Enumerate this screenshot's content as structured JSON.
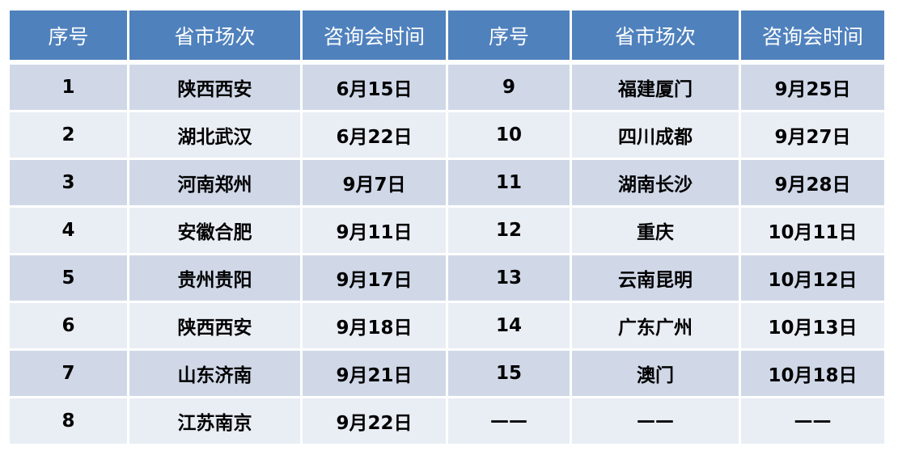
{
  "headers": [
    "序号",
    "省市场次",
    "咨询会时间",
    "序号",
    "省市场次",
    "咨询会时间"
  ],
  "rows": [
    {
      "left": {
        "no": "1",
        "city": "陕西西安",
        "date": "6月15日"
      },
      "right": {
        "no": "9",
        "city": "福建厦门",
        "date": "9月25日"
      }
    },
    {
      "left": {
        "no": "2",
        "city": "湖北武汉",
        "date": "6月22日"
      },
      "right": {
        "no": "10",
        "city": "四川成都",
        "date": "9月27日"
      }
    },
    {
      "left": {
        "no": "3",
        "city": "河南郑州",
        "date": "9月7日"
      },
      "right": {
        "no": "11",
        "city": "湖南长沙",
        "date": "9月28日"
      }
    },
    {
      "left": {
        "no": "4",
        "city": "安徽合肥",
        "date": "9月11日"
      },
      "right": {
        "no": "12",
        "city": "重庆",
        "date": "10月11日"
      }
    },
    {
      "left": {
        "no": "5",
        "city": "贵州贵阳",
        "date": "9月17日"
      },
      "right": {
        "no": "13",
        "city": "云南昆明",
        "date": "10月12日"
      }
    },
    {
      "left": {
        "no": "6",
        "city": "陕西西安",
        "date": "9月18日"
      },
      "right": {
        "no": "14",
        "city": "广东广州",
        "date": "10月13日"
      }
    },
    {
      "left": {
        "no": "7",
        "city": "山东济南",
        "date": "9月21日"
      },
      "right": {
        "no": "15",
        "city": "澳门",
        "date": "10月18日"
      }
    },
    {
      "left": {
        "no": "8",
        "city": "江苏南京",
        "date": "9月22日"
      },
      "right": {
        "no": "——",
        "city": "——",
        "date": "——"
      }
    }
  ],
  "colors": {
    "header": "#4f81bd",
    "row_odd": "#d0d8e8",
    "row_even": "#e9edf4"
  }
}
